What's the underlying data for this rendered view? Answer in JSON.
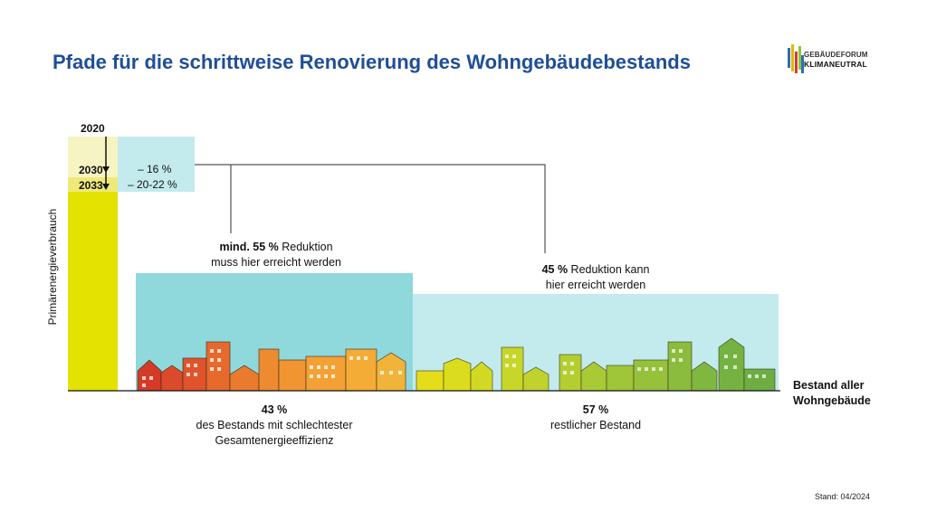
{
  "title": "Pfade für die schrittweise Renovierung des Wohngebäudebestands",
  "logo": {
    "line1": "GEBÄUDEFORUM",
    "line2": "KLIMANEUTRAL"
  },
  "y_axis_label": "Primärenergieverbrauch",
  "timeline": [
    {
      "year": "2020"
    },
    {
      "year": "2030",
      "reduction": "– 16 %"
    },
    {
      "year": "2033",
      "reduction": "– 20-22 %"
    }
  ],
  "worst_segment": {
    "share": "43 %",
    "desc_line1": "des Bestands mit schlechtester",
    "desc_line2": "Gesamtenergieeffizienz",
    "target_bold": "mind. 55 %",
    "target_rest": " Reduktion",
    "target_line2": "muss hier erreicht werden"
  },
  "rest_segment": {
    "share": "57 %",
    "desc_line1": "restlicher Bestand",
    "target_bold": "45 %",
    "target_rest": " Reduktion kann",
    "target_line2": "hier erreicht werden"
  },
  "x_axis_label_line1": "Bestand aller",
  "x_axis_label_line2": "Wohngebäude",
  "stand": "Stand: 04/2024",
  "colors": {
    "title": "#1f4e96",
    "bar_yellow": "#e3e200",
    "bar_light_yellow": "#f7f4c4",
    "worst_block": "#8fd8dc",
    "rest_block": "#c3ebee",
    "timeline_box": "#c3ebee"
  }
}
